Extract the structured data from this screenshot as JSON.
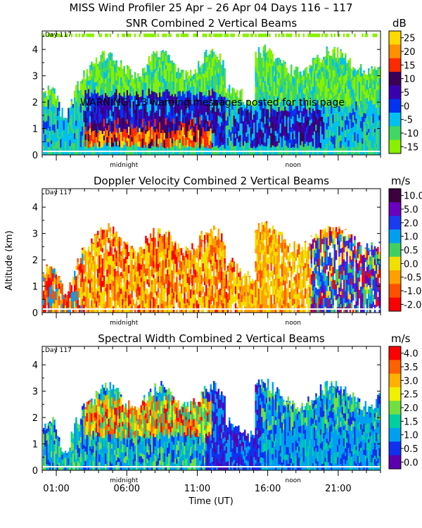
{
  "figure_title": "MISS Wind Profiler  25 Apr – 26 Apr 04 Days 116 – 117",
  "warning_text": "WARNING: 13 warning messages posted for this page",
  "y_axis_label": "Altitude (km)",
  "x_axis_label": "Time (UT)",
  "day_label": "Day 117",
  "x_ticks": [
    {
      "label": "01:00",
      "value": 1
    },
    {
      "label": "06:00",
      "value": 6
    },
    {
      "label": "11:00",
      "value": 11
    },
    {
      "label": "16:00",
      "value": 16
    },
    {
      "label": "21:00",
      "value": 21
    }
  ],
  "local_markers": [
    {
      "label": "midnight",
      "value": 5.8
    },
    {
      "label": "noon",
      "value": 17.8
    }
  ],
  "chart_data": [
    {
      "type": "heatmap",
      "title": "SNR Combined 2 Vertical Beams",
      "unit": "dB",
      "colorbar": {
        "labels": [
          "25",
          "20",
          "15",
          "10",
          "5",
          "0",
          "-5",
          "-10",
          "-15"
        ],
        "values": [
          25,
          20,
          15,
          10,
          5,
          0,
          -5,
          -10,
          -15
        ],
        "colors": [
          "#ffd800",
          "#ff9000",
          "#ff2a00",
          "#3c0058",
          "#3a00b0",
          "#0034f0",
          "#00c0f0",
          "#40d860",
          "#88f000"
        ]
      },
      "xlabel": "Time (UT)",
      "ylabel": "Altitude (km)",
      "xlim": [
        0,
        24
      ],
      "ylim": [
        0,
        4.7
      ],
      "yticks": [
        0,
        1,
        2,
        3,
        4
      ]
    },
    {
      "type": "heatmap",
      "title": "Doppler Velocity Combined 2 Vertical Beams",
      "unit": "m/s",
      "colorbar": {
        "labels": [
          "10.0",
          "5.0",
          "2.0",
          "1.0",
          "0.5",
          "0.0",
          "-0.5",
          "-1.0",
          "-2.0"
        ],
        "values": [
          10.0,
          5.0,
          2.0,
          1.0,
          0.5,
          0.0,
          -0.5,
          -1.0,
          -2.0
        ],
        "colors": [
          "#3c0040",
          "#6a00c0",
          "#1a3cf0",
          "#00a0f0",
          "#40d060",
          "#f0e000",
          "#ffa000",
          "#ff5000",
          "#ff0000"
        ]
      },
      "xlabel": "Time (UT)",
      "ylabel": "Altitude (km)",
      "xlim": [
        0,
        24
      ],
      "ylim": [
        0,
        4.7
      ],
      "yticks": [
        0,
        1,
        2,
        3,
        4
      ]
    },
    {
      "type": "heatmap",
      "title": "Spectral Width Combined 2 Vertical Beams",
      "unit": "m/s",
      "colorbar": {
        "labels": [
          "4.0",
          "3.5",
          "3.0",
          "2.5",
          "2.0",
          "1.5",
          "1.0",
          "0.5",
          "0.0"
        ],
        "values": [
          4.0,
          3.5,
          3.0,
          2.5,
          2.0,
          1.5,
          1.0,
          0.5,
          0.0
        ],
        "colors": [
          "#ff0000",
          "#ff6000",
          "#ffb000",
          "#f0f000",
          "#70e040",
          "#00d0a0",
          "#00a0f0",
          "#1030f0",
          "#5a00b0"
        ]
      },
      "xlabel": "Time (UT)",
      "ylabel": "Altitude (km)",
      "xlim": [
        0,
        24
      ],
      "ylim": [
        0,
        4.7
      ],
      "yticks": [
        0,
        1,
        2,
        3,
        4
      ]
    }
  ]
}
